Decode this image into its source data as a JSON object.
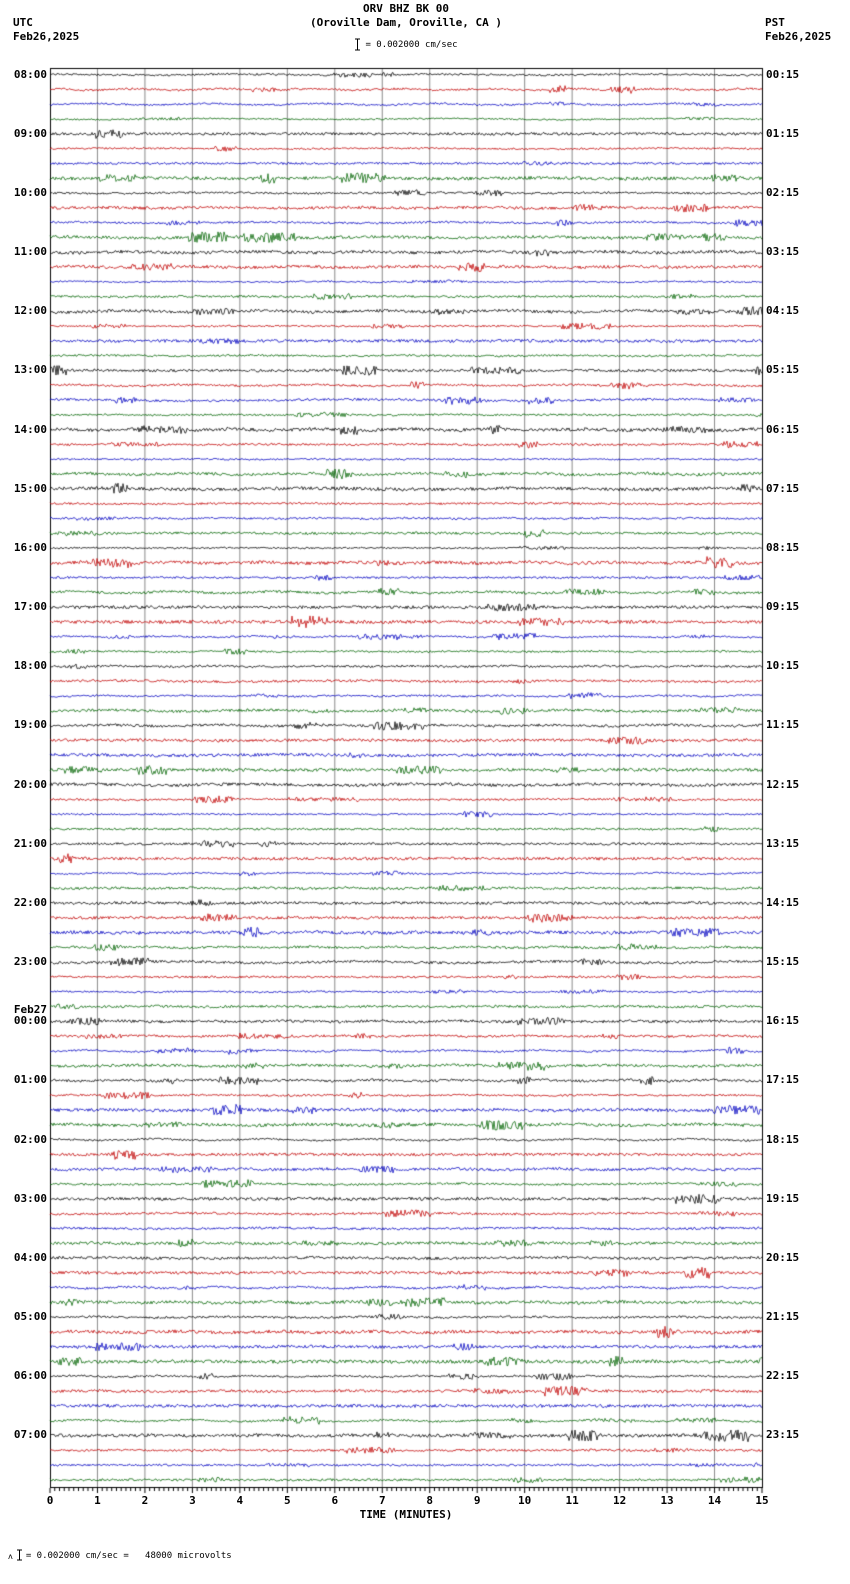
{
  "header": {
    "station": "ORV BHZ BK 00",
    "location": "(Oroville Dam, Oroville, CA )",
    "left_tz": "UTC",
    "left_date": "Feb26,2025",
    "right_tz": "PST",
    "right_date": "Feb26,2025",
    "scale_label": "= 0.002000 cm/sec"
  },
  "x_axis": {
    "title": "TIME (MINUTES)",
    "ticks": [
      "0",
      "1",
      "2",
      "3",
      "4",
      "5",
      "6",
      "7",
      "8",
      "9",
      "10",
      "11",
      "12",
      "13",
      "14",
      "15"
    ]
  },
  "footer": {
    "prefix": "ʌ",
    "scale_note": "= 0.002000 cm/sec =   48000 microvolts"
  },
  "chart_data": {
    "type": "line",
    "subtype": "helicorder-seismogram",
    "title": "ORV BHZ BK 00 (Oroville Dam, Oroville, CA)",
    "xlabel": "TIME (MINUTES)",
    "x_range_minutes": [
      0,
      15
    ],
    "traces_per_hour": 4,
    "minutes_per_trace": 15,
    "total_traces": 96,
    "trace_colors": [
      "#000000",
      "#c00000",
      "#0000c0",
      "#006400"
    ],
    "amplitude_scale": "scale bar = 0.002000 cm/sec = 48000 microvolts",
    "signal_description": "Continuous low-amplitude microseismic background noise on every 15-minute trace for 24 hours (08:00 UTC Feb26,2025 through 08:00 UTC Feb27,2025); no large earthquake signatures, only small sporadic noise bursts. Trace colors cycle black, red, blue, green within each hour.",
    "grid": "vertical gridlines every 1 minute, 0-15 minutes",
    "hours": [
      {
        "utc": "08:00",
        "pst": "00:15"
      },
      {
        "utc": "09:00",
        "pst": "01:15"
      },
      {
        "utc": "10:00",
        "pst": "02:15"
      },
      {
        "utc": "11:00",
        "pst": "03:15"
      },
      {
        "utc": "12:00",
        "pst": "04:15"
      },
      {
        "utc": "13:00",
        "pst": "05:15"
      },
      {
        "utc": "14:00",
        "pst": "06:15"
      },
      {
        "utc": "15:00",
        "pst": "07:15"
      },
      {
        "utc": "16:00",
        "pst": "08:15"
      },
      {
        "utc": "17:00",
        "pst": "09:15"
      },
      {
        "utc": "18:00",
        "pst": "10:15"
      },
      {
        "utc": "19:00",
        "pst": "11:15"
      },
      {
        "utc": "20:00",
        "pst": "12:15"
      },
      {
        "utc": "21:00",
        "pst": "13:15"
      },
      {
        "utc": "22:00",
        "pst": "14:15"
      },
      {
        "utc": "23:00",
        "pst": "15:15"
      },
      {
        "utc": "00:00",
        "pst": "16:15",
        "date_label": "Feb27"
      },
      {
        "utc": "01:00",
        "pst": "17:15"
      },
      {
        "utc": "02:00",
        "pst": "18:15"
      },
      {
        "utc": "03:00",
        "pst": "19:15"
      },
      {
        "utc": "04:00",
        "pst": "20:15"
      },
      {
        "utc": "05:00",
        "pst": "21:15"
      },
      {
        "utc": "06:00",
        "pst": "22:15"
      },
      {
        "utc": "07:00",
        "pst": "23:15"
      }
    ]
  }
}
